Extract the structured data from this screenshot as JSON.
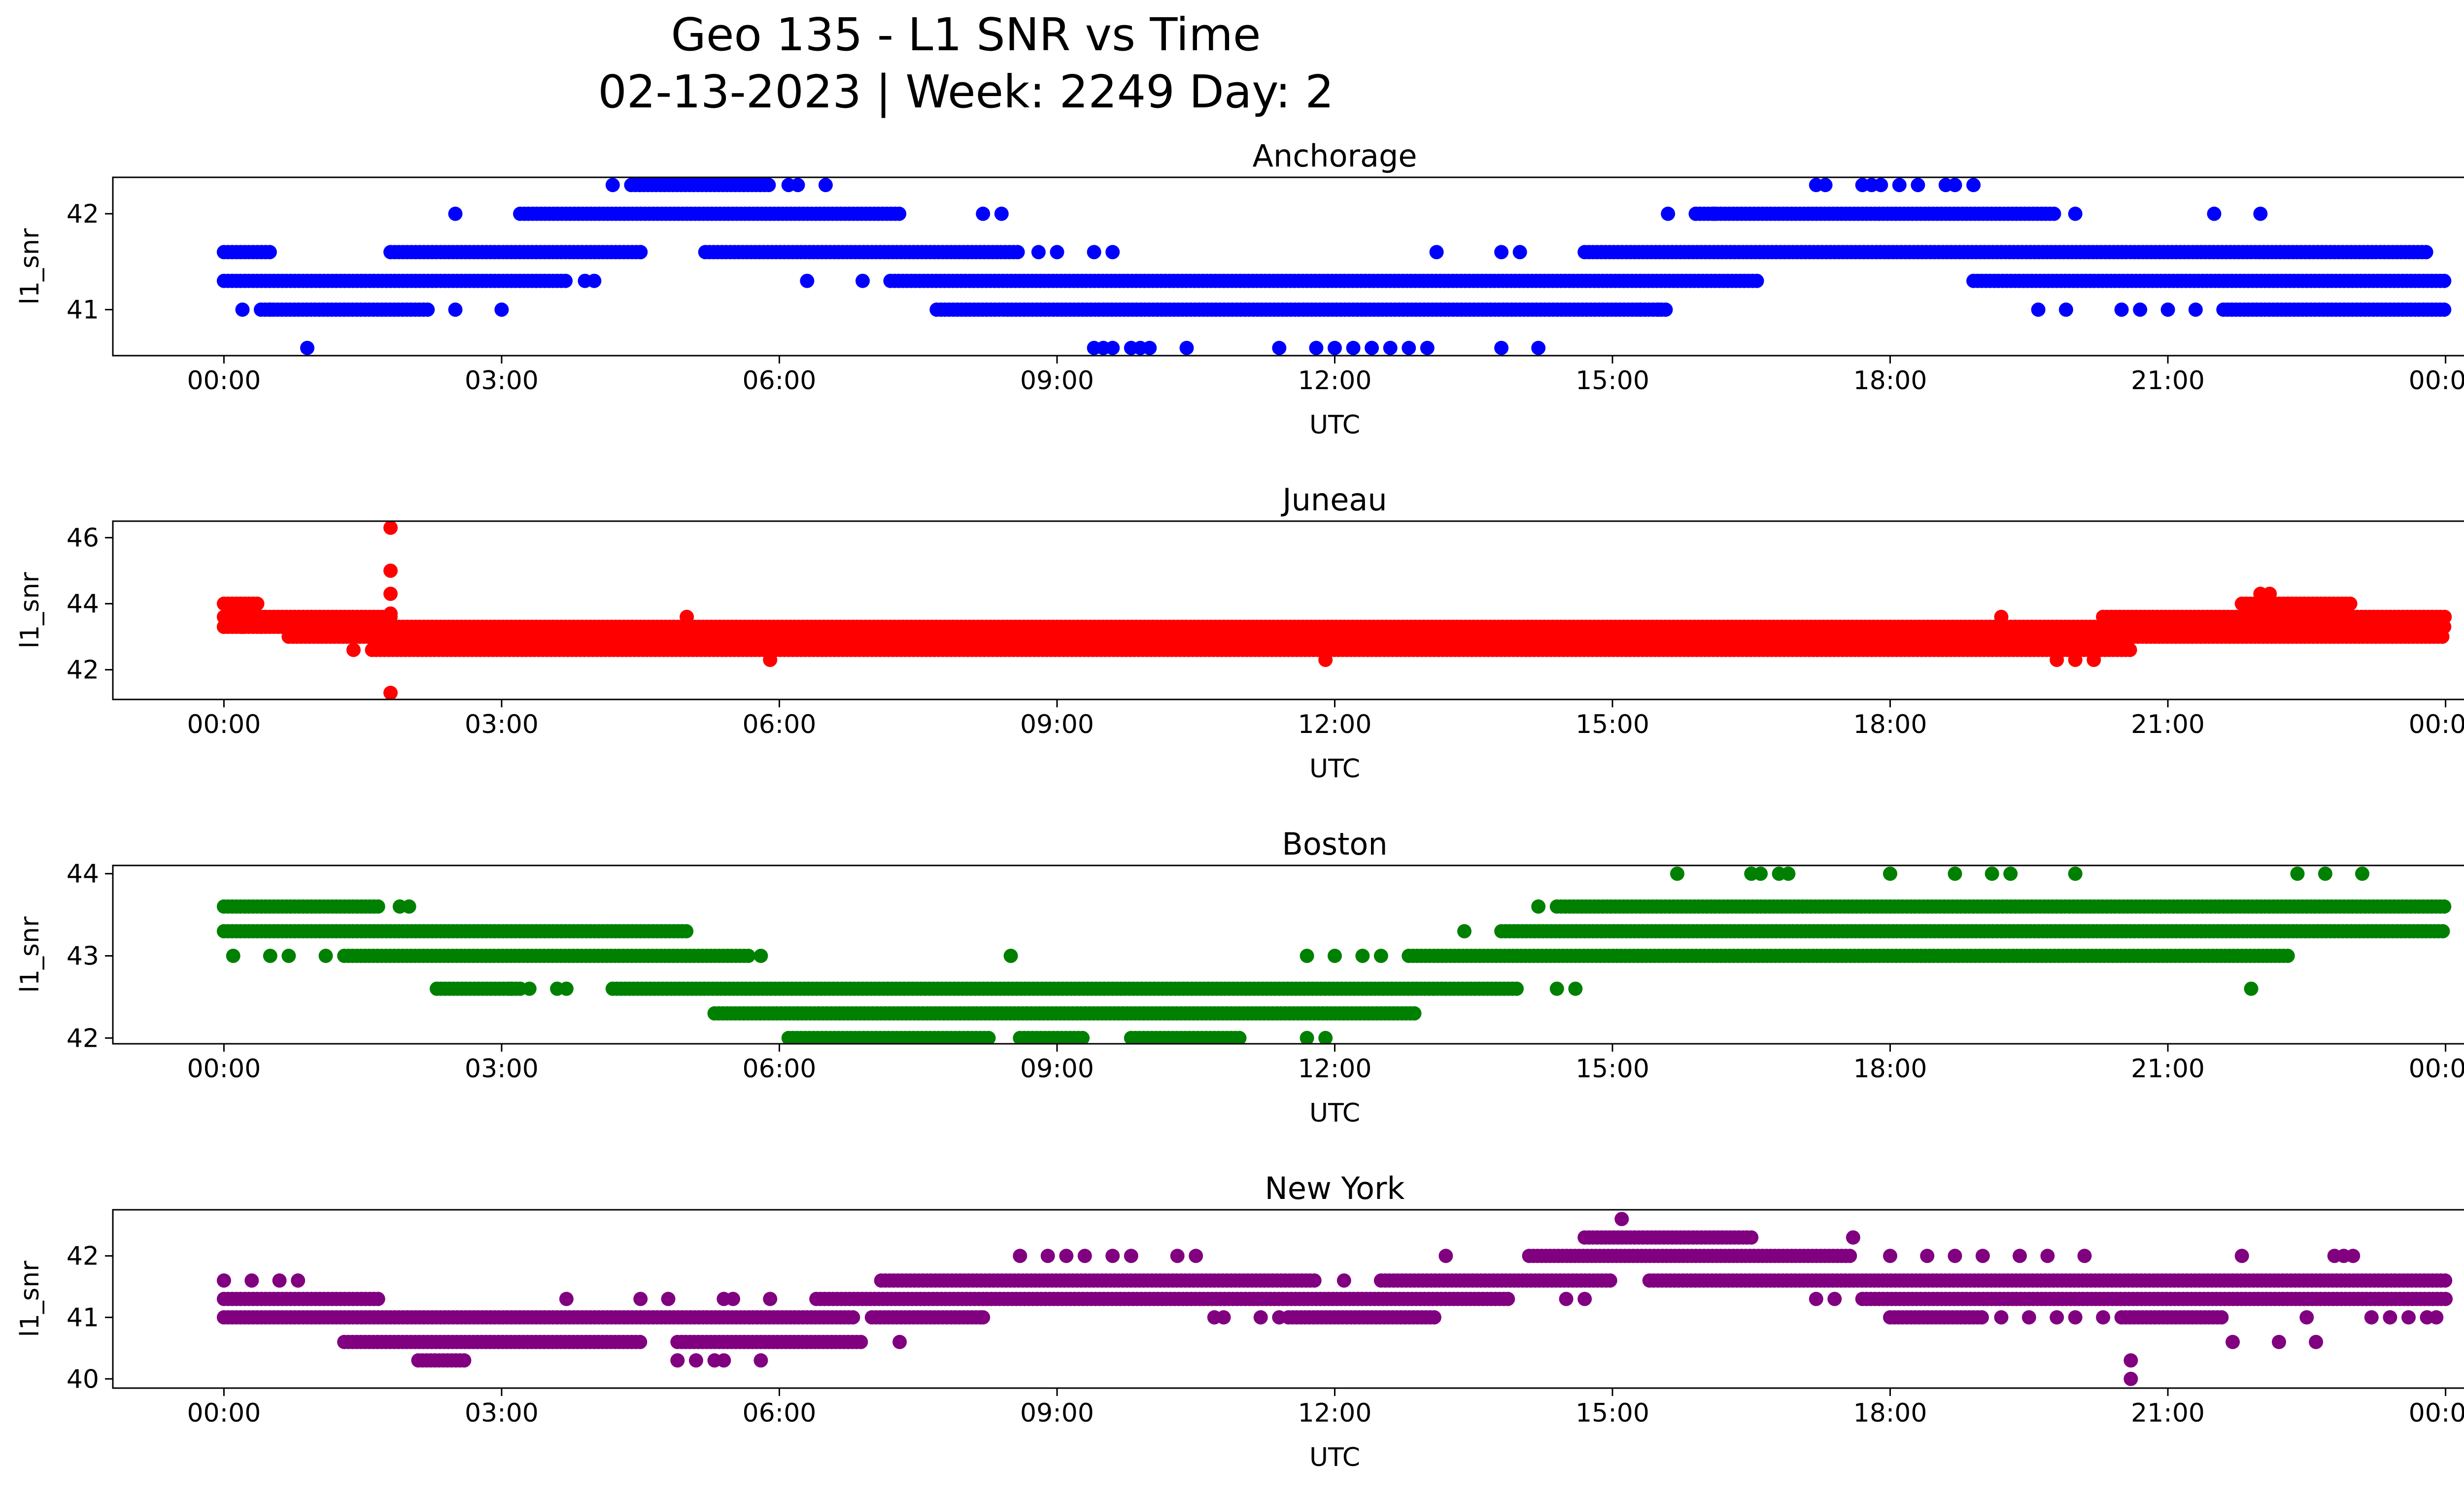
{
  "figure": {
    "title_line1": "Geo 135 - L1 SNR vs Time",
    "title_line2": "02-13-2023 | Week: 2249 Day: 2"
  },
  "chart_data": [
    {
      "type": "scatter",
      "title": "Anchorage",
      "xlabel": "UTC",
      "ylabel": "l1_snr",
      "color": "#0000ff",
      "xlim": [
        -1.2,
        25.2
      ],
      "ylim": [
        40.52,
        42.38
      ],
      "xticks": [
        0,
        3,
        6,
        9,
        12,
        15,
        18,
        21,
        24
      ],
      "xtick_labels": [
        "00:00",
        "03:00",
        "06:00",
        "09:00",
        "12:00",
        "15:00",
        "18:00",
        "21:00",
        "00:00"
      ],
      "yticks": [
        41,
        42
      ],
      "ytick_labels": [
        "41",
        "42"
      ],
      "bands": [
        {
          "y": 42.3,
          "ranges": [
            [
              4.4,
              5.9
            ]
          ]
        },
        {
          "y": 42.0,
          "ranges": [
            [
              3.2,
              7.3
            ],
            [
              15.9,
              19.8
            ]
          ]
        },
        {
          "y": 41.6,
          "ranges": [
            [
              0.0,
              0.5
            ],
            [
              1.8,
              4.5
            ],
            [
              5.2,
              8.6
            ],
            [
              14.7,
              23.8
            ]
          ]
        },
        {
          "y": 41.3,
          "ranges": [
            [
              0.0,
              3.7
            ],
            [
              7.2,
              16.6
            ],
            [
              18.9,
              24.0
            ]
          ]
        },
        {
          "y": 41.0,
          "ranges": [
            [
              0.4,
              2.2
            ],
            [
              7.7,
              15.6
            ],
            [
              21.6,
              24.0
            ]
          ]
        }
      ],
      "points": [
        [
          0.9,
          40.6
        ],
        [
          0.2,
          41.0
        ],
        [
          0.5,
          41.0
        ],
        [
          2.5,
          41.0
        ],
        [
          3.0,
          41.0
        ],
        [
          2.5,
          42.0
        ],
        [
          4.5,
          41.6
        ],
        [
          3.9,
          41.3
        ],
        [
          4.0,
          41.3
        ],
        [
          6.3,
          41.3
        ],
        [
          6.9,
          41.3
        ],
        [
          8.2,
          42.0
        ],
        [
          8.4,
          42.0
        ],
        [
          8.8,
          41.6
        ],
        [
          9.0,
          41.6
        ],
        [
          9.4,
          41.6
        ],
        [
          9.6,
          41.6
        ],
        [
          4.2,
          42.3
        ],
        [
          6.1,
          42.3
        ],
        [
          6.2,
          42.3
        ],
        [
          6.5,
          42.3
        ],
        [
          9.4,
          40.6
        ],
        [
          9.5,
          40.6
        ],
        [
          9.6,
          40.6
        ],
        [
          9.8,
          40.6
        ],
        [
          9.9,
          40.6
        ],
        [
          10.0,
          40.6
        ],
        [
          10.4,
          40.6
        ],
        [
          11.4,
          40.6
        ],
        [
          11.8,
          40.6
        ],
        [
          12.0,
          40.6
        ],
        [
          12.2,
          40.6
        ],
        [
          12.4,
          40.6
        ],
        [
          12.6,
          40.6
        ],
        [
          12.8,
          40.6
        ],
        [
          13.0,
          40.6
        ],
        [
          13.8,
          40.6
        ],
        [
          14.2,
          40.6
        ],
        [
          13.1,
          41.6
        ],
        [
          13.8,
          41.6
        ],
        [
          14.0,
          41.6
        ],
        [
          17.2,
          42.3
        ],
        [
          17.3,
          42.3
        ],
        [
          17.7,
          42.3
        ],
        [
          17.8,
          42.3
        ],
        [
          17.9,
          42.3
        ],
        [
          18.1,
          42.3
        ],
        [
          18.3,
          42.3
        ],
        [
          18.6,
          42.3
        ],
        [
          18.7,
          42.3
        ],
        [
          18.9,
          42.3
        ],
        [
          15.6,
          42.0
        ],
        [
          15.9,
          42.0
        ],
        [
          16.1,
          42.0
        ],
        [
          20.0,
          42.0
        ],
        [
          21.5,
          42.0
        ],
        [
          22.0,
          42.0
        ],
        [
          19.6,
          41.0
        ],
        [
          19.9,
          41.0
        ],
        [
          20.5,
          41.0
        ],
        [
          20.7,
          41.0
        ],
        [
          21.0,
          41.0
        ],
        [
          21.3,
          41.0
        ],
        [
          15.3,
          41.0
        ],
        [
          15.5,
          41.0
        ]
      ]
    },
    {
      "type": "scatter",
      "title": "Juneau",
      "xlabel": "UTC",
      "ylabel": "l1_snr",
      "color": "#ff0000",
      "xlim": [
        -1.2,
        25.2
      ],
      "ylim": [
        41.1,
        46.5
      ],
      "xticks": [
        0,
        3,
        6,
        9,
        12,
        15,
        18,
        21,
        24
      ],
      "xtick_labels": [
        "00:00",
        "03:00",
        "06:00",
        "09:00",
        "12:00",
        "15:00",
        "18:00",
        "21:00",
        "00:00"
      ],
      "yticks": [
        42,
        44,
        46
      ],
      "ytick_labels": [
        "42",
        "44",
        "46"
      ],
      "bands": [
        {
          "y": 44.0,
          "ranges": [
            [
              0.0,
              0.4
            ],
            [
              21.8,
              23.0
            ]
          ]
        },
        {
          "y": 43.6,
          "ranges": [
            [
              0.0,
              1.8
            ],
            [
              20.3,
              24.0
            ]
          ]
        },
        {
          "y": 43.3,
          "ranges": [
            [
              0.0,
              24.0
            ]
          ]
        },
        {
          "y": 43.0,
          "ranges": [
            [
              0.7,
              24.0
            ]
          ]
        },
        {
          "y": 42.6,
          "ranges": [
            [
              1.6,
              20.6
            ]
          ]
        }
      ],
      "points": [
        [
          1.8,
          46.3
        ],
        [
          1.8,
          45.0
        ],
        [
          1.8,
          44.3
        ],
        [
          1.8,
          43.7
        ],
        [
          1.8,
          41.3
        ],
        [
          1.4,
          42.6
        ],
        [
          5.0,
          43.6
        ],
        [
          5.9,
          42.3
        ],
        [
          11.9,
          42.3
        ],
        [
          19.2,
          43.6
        ],
        [
          19.8,
          42.3
        ],
        [
          20.0,
          42.3
        ],
        [
          20.2,
          42.3
        ],
        [
          22.0,
          44.3
        ],
        [
          22.1,
          44.3
        ],
        [
          22.3,
          44.0
        ],
        [
          0.0,
          43.3
        ],
        [
          0.2,
          43.3
        ],
        [
          0.4,
          43.3
        ]
      ]
    },
    {
      "type": "scatter",
      "title": "Boston",
      "xlabel": "UTC",
      "ylabel": "l1_snr",
      "color": "#008000",
      "xlim": [
        -1.2,
        25.2
      ],
      "ylim": [
        41.93,
        44.1
      ],
      "xticks": [
        0,
        3,
        6,
        9,
        12,
        15,
        18,
        21,
        24
      ],
      "xtick_labels": [
        "00:00",
        "03:00",
        "06:00",
        "09:00",
        "12:00",
        "15:00",
        "18:00",
        "21:00",
        "00:00"
      ],
      "yticks": [
        42,
        43,
        44
      ],
      "ytick_labels": [
        "42",
        "43",
        "44"
      ],
      "bands": [
        {
          "y": 43.6,
          "ranges": [
            [
              0.0,
              1.7
            ],
            [
              14.4,
              24.0
            ]
          ]
        },
        {
          "y": 43.3,
          "ranges": [
            [
              0.0,
              5.0
            ],
            [
              13.8,
              24.0
            ]
          ]
        },
        {
          "y": 43.0,
          "ranges": [
            [
              1.3,
              5.7
            ],
            [
              12.8,
              22.3
            ]
          ]
        },
        {
          "y": 42.6,
          "ranges": [
            [
              2.3,
              3.2
            ],
            [
              4.2,
              14.0
            ]
          ]
        },
        {
          "y": 42.3,
          "ranges": [
            [
              5.3,
              12.9
            ]
          ]
        },
        {
          "y": 42.0,
          "ranges": [
            [
              6.1,
              8.3
            ],
            [
              8.6,
              9.3
            ],
            [
              9.8,
              11.0
            ]
          ]
        }
      ],
      "points": [
        [
          0.1,
          43.0
        ],
        [
          0.5,
          43.0
        ],
        [
          0.7,
          43.0
        ],
        [
          1.1,
          43.0
        ],
        [
          1.9,
          43.6
        ],
        [
          2.0,
          43.6
        ],
        [
          3.1,
          42.6
        ],
        [
          3.3,
          42.6
        ],
        [
          3.6,
          42.6
        ],
        [
          3.7,
          42.6
        ],
        [
          5.8,
          43.0
        ],
        [
          8.5,
          43.0
        ],
        [
          11.7,
          42.0
        ],
        [
          11.9,
          42.0
        ],
        [
          11.7,
          43.0
        ],
        [
          12.0,
          43.0
        ],
        [
          12.3,
          43.0
        ],
        [
          12.5,
          43.0
        ],
        [
          14.2,
          43.6
        ],
        [
          13.4,
          43.3
        ],
        [
          14.4,
          42.6
        ],
        [
          14.6,
          42.6
        ],
        [
          15.7,
          44.0
        ],
        [
          16.5,
          44.0
        ],
        [
          16.6,
          44.0
        ],
        [
          16.8,
          44.0
        ],
        [
          16.9,
          44.0
        ],
        [
          18.0,
          44.0
        ],
        [
          18.7,
          44.0
        ],
        [
          19.1,
          44.0
        ],
        [
          19.3,
          44.0
        ],
        [
          20.0,
          44.0
        ],
        [
          22.4,
          44.0
        ],
        [
          22.7,
          44.0
        ],
        [
          23.1,
          44.0
        ],
        [
          21.9,
          42.6
        ]
      ]
    },
    {
      "type": "scatter",
      "title": "New York",
      "xlabel": "UTC",
      "ylabel": "l1_snr",
      "color": "#800080",
      "xlim": [
        -1.2,
        25.2
      ],
      "ylim": [
        39.85,
        42.75
      ],
      "xticks": [
        0,
        3,
        6,
        9,
        12,
        15,
        18,
        21,
        24
      ],
      "xtick_labels": [
        "00:00",
        "03:00",
        "06:00",
        "09:00",
        "12:00",
        "15:00",
        "18:00",
        "21:00",
        "00:00"
      ],
      "yticks": [
        40,
        41,
        42
      ],
      "ytick_labels": [
        "40",
        "41",
        "42"
      ],
      "bands": [
        {
          "y": 42.3,
          "ranges": [
            [
              14.7,
              16.5
            ]
          ]
        },
        {
          "y": 42.0,
          "ranges": [
            [
              14.1,
              17.6
            ]
          ]
        },
        {
          "y": 41.6,
          "ranges": [
            [
              7.1,
              11.8
            ],
            [
              12.5,
              15.0
            ],
            [
              15.4,
              24.0
            ]
          ]
        },
        {
          "y": 41.3,
          "ranges": [
            [
              0.0,
              1.7
            ],
            [
              6.4,
              13.9
            ],
            [
              17.7,
              24.0
            ]
          ]
        },
        {
          "y": 41.0,
          "ranges": [
            [
              0.0,
              6.8
            ],
            [
              7.0,
              8.2
            ],
            [
              11.5,
              13.1
            ],
            [
              18.0,
              19.0
            ],
            [
              20.5,
              21.6
            ]
          ]
        },
        {
          "y": 40.6,
          "ranges": [
            [
              1.3,
              4.5
            ],
            [
              4.9,
              6.9
            ]
          ]
        },
        {
          "y": 40.3,
          "ranges": [
            [
              2.1,
              2.6
            ]
          ]
        }
      ],
      "points": [
        [
          0.0,
          41.6
        ],
        [
          0.3,
          41.6
        ],
        [
          0.6,
          41.6
        ],
        [
          0.8,
          41.6
        ],
        [
          3.7,
          41.3
        ],
        [
          4.5,
          41.3
        ],
        [
          4.8,
          41.3
        ],
        [
          5.4,
          41.3
        ],
        [
          5.5,
          41.3
        ],
        [
          5.9,
          41.3
        ],
        [
          4.9,
          40.3
        ],
        [
          5.1,
          40.3
        ],
        [
          5.3,
          40.3
        ],
        [
          5.4,
          40.3
        ],
        [
          5.8,
          40.3
        ],
        [
          7.3,
          40.6
        ],
        [
          8.2,
          41.0
        ],
        [
          8.6,
          42.0
        ],
        [
          8.9,
          42.0
        ],
        [
          9.1,
          42.0
        ],
        [
          9.3,
          42.0
        ],
        [
          9.6,
          42.0
        ],
        [
          9.8,
          42.0
        ],
        [
          10.3,
          42.0
        ],
        [
          10.5,
          42.0
        ],
        [
          10.7,
          41.0
        ],
        [
          10.8,
          41.0
        ],
        [
          11.2,
          41.0
        ],
        [
          11.4,
          41.0
        ],
        [
          12.1,
          41.6
        ],
        [
          13.2,
          42.0
        ],
        [
          14.5,
          41.3
        ],
        [
          14.7,
          41.3
        ],
        [
          15.1,
          42.6
        ],
        [
          17.2,
          41.3
        ],
        [
          17.4,
          41.3
        ],
        [
          17.6,
          42.3
        ],
        [
          18.0,
          42.0
        ],
        [
          18.4,
          42.0
        ],
        [
          18.7,
          42.0
        ],
        [
          19.0,
          42.0
        ],
        [
          19.4,
          42.0
        ],
        [
          19.7,
          42.0
        ],
        [
          20.1,
          42.0
        ],
        [
          19.2,
          41.0
        ],
        [
          19.5,
          41.0
        ],
        [
          19.8,
          41.0
        ],
        [
          20.0,
          41.0
        ],
        [
          20.3,
          41.0
        ],
        [
          20.6,
          40.3
        ],
        [
          20.6,
          40.0
        ],
        [
          21.7,
          40.6
        ],
        [
          21.8,
          42.0
        ],
        [
          22.2,
          40.6
        ],
        [
          22.6,
          40.6
        ],
        [
          22.5,
          41.0
        ],
        [
          22.8,
          42.0
        ],
        [
          22.9,
          42.0
        ],
        [
          23.0,
          42.0
        ],
        [
          23.2,
          41.0
        ],
        [
          23.4,
          41.0
        ],
        [
          23.6,
          41.0
        ],
        [
          23.8,
          41.0
        ],
        [
          23.9,
          41.0
        ]
      ]
    }
  ]
}
